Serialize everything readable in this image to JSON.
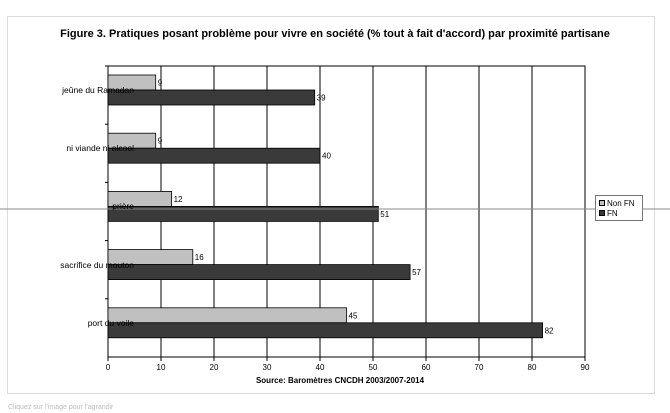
{
  "chart_data": {
    "type": "bar",
    "orientation": "horizontal",
    "title": "Figure 3. Pratiques  posant problème pour vivre en société (% tout à fait d'accord) par proximité partisane",
    "categories": [
      "jeûne du Ramadan",
      "ni viande ni alcool",
      "prière",
      "sacrifice du mouton",
      "port du voile"
    ],
    "series": [
      {
        "name": "Non FN",
        "values": [
          9,
          9,
          12,
          16,
          45
        ],
        "color": "#c0c0c0"
      },
      {
        "name": "FN",
        "values": [
          39,
          40,
          51,
          57,
          82
        ],
        "color": "#3a3a3a"
      }
    ],
    "xlim": [
      0,
      90
    ],
    "xticks": [
      "0",
      "10",
      "20",
      "30",
      "40",
      "50",
      "60",
      "70",
      "80",
      "90"
    ],
    "grid": true,
    "legend_position": "right",
    "source": "Source: Baromètres CNCDH 2003/2007-2014"
  },
  "caption": "Cliquez sur l'image pour l'agrandir"
}
